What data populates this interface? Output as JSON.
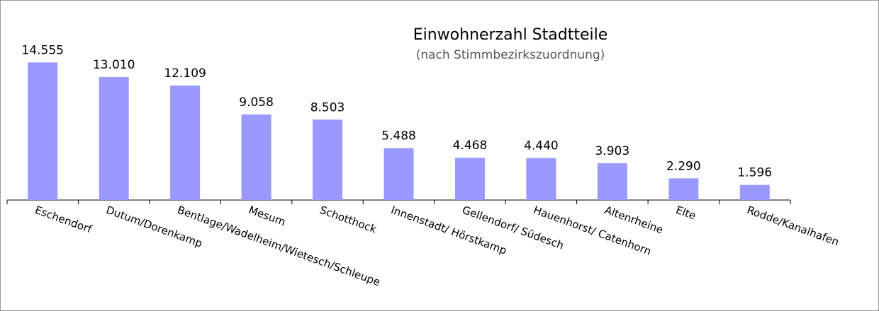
{
  "chart_data": {
    "type": "bar",
    "title": "Einwohnerzahl  Stadtteile",
    "subtitle": "(nach Stimmbezirkszuordnung)",
    "categories": [
      "Eschendorf",
      "Dutum/Dorenkamp",
      "Bentlage/Wadelheim/Wietesch/Schleupe",
      "Mesum",
      "Schotthock",
      "Innenstadt/ Hörstkamp",
      "Gellendorf/ Südesch",
      "Hauenhorst/ Catenhorn",
      "Altenrheine",
      "Elte",
      "Rodde/Kanalhafen"
    ],
    "values": [
      14555,
      13010,
      12109,
      9058,
      8503,
      5488,
      4468,
      4440,
      3903,
      2290,
      1596
    ],
    "value_labels": [
      "14.555",
      "13.010",
      "12.109",
      "9.058",
      "8.503",
      "5.488",
      "4.468",
      "4.440",
      "3.903",
      "2.290",
      "1.596"
    ],
    "color": "#9999ff",
    "ylim": [
      0,
      16000
    ]
  }
}
